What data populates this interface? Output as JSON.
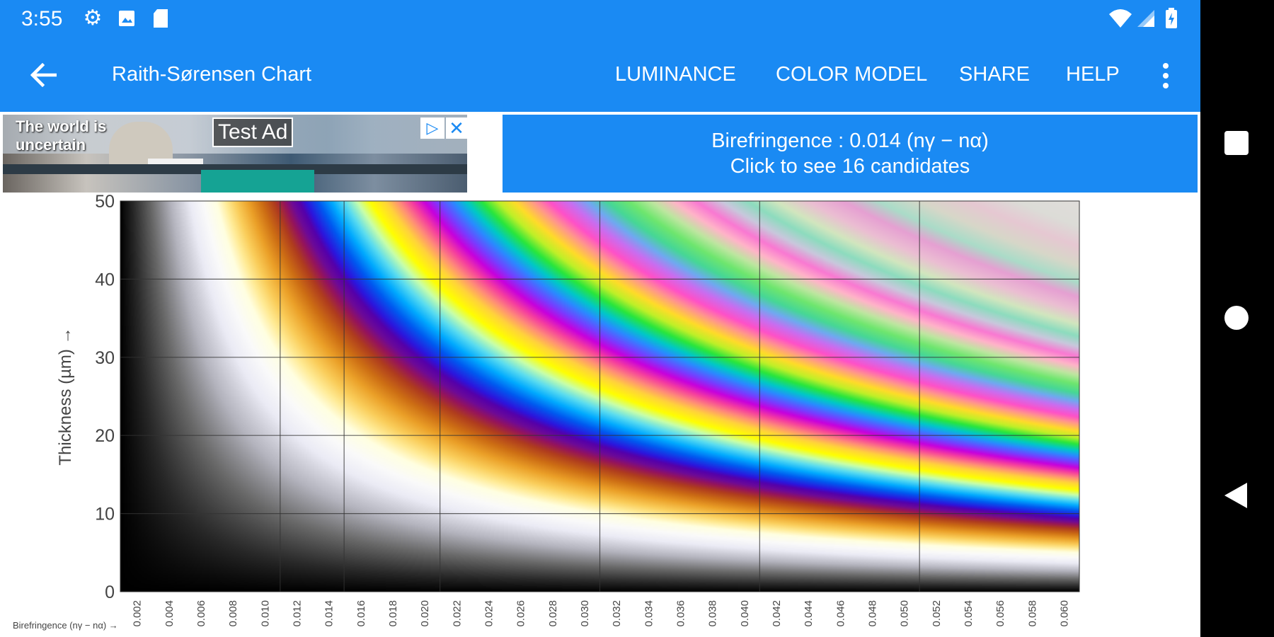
{
  "status_bar": {
    "time": "3:55",
    "icons": [
      "gear-icon",
      "image-icon",
      "sd-card-icon",
      "wifi-icon",
      "signal-icon",
      "battery-icon"
    ]
  },
  "app_bar": {
    "back_icon": "arrow-left-icon",
    "title": "Raith-Sørensen Chart",
    "actions": [
      "LUMINANCE",
      "COLOR MODEL",
      "SHARE",
      "HELP"
    ],
    "overflow_icon": "more-vert-icon"
  },
  "ad": {
    "headline": "The world is uncertain",
    "label": "Test Ad",
    "choices_icon": "adchoices-icon",
    "close_icon": "close-icon"
  },
  "info_panel": {
    "line1": "Birefringence : 0.014 (nγ − nα)",
    "line2": "Click to see 16 candidates"
  },
  "nav_bar": {
    "icons": [
      "recents-square-icon",
      "home-circle-icon",
      "back-triangle-icon"
    ]
  },
  "chart_data": {
    "type": "heatmap",
    "title": "",
    "xlabel": "Birefringence (nγ − nα) →",
    "ylabel": "Thickness (µm) →",
    "xlim": [
      0.002,
      0.06
    ],
    "ylim": [
      0,
      50
    ],
    "x_ticks": [
      "0.002",
      "0.004",
      "0.006",
      "0.008",
      "0.010",
      "0.012",
      "0.014",
      "0.016",
      "0.018",
      "0.020",
      "0.022",
      "0.024",
      "0.026",
      "0.028",
      "0.030",
      "0.032",
      "0.034",
      "0.036",
      "0.038",
      "0.040",
      "0.042",
      "0.044",
      "0.046",
      "0.048",
      "0.050",
      "0.052",
      "0.054",
      "0.056",
      "0.058",
      "0.060"
    ],
    "y_ticks": [
      "0",
      "10",
      "20",
      "30",
      "40",
      "50"
    ],
    "grid_x": [
      0.01,
      0.014,
      0.02,
      0.03,
      0.04,
      0.05
    ],
    "grid_y": [
      10,
      20,
      30,
      40
    ],
    "grid": true,
    "colormap": "Michel-Levy interference colors (retardation = thickness × birefringence)"
  }
}
